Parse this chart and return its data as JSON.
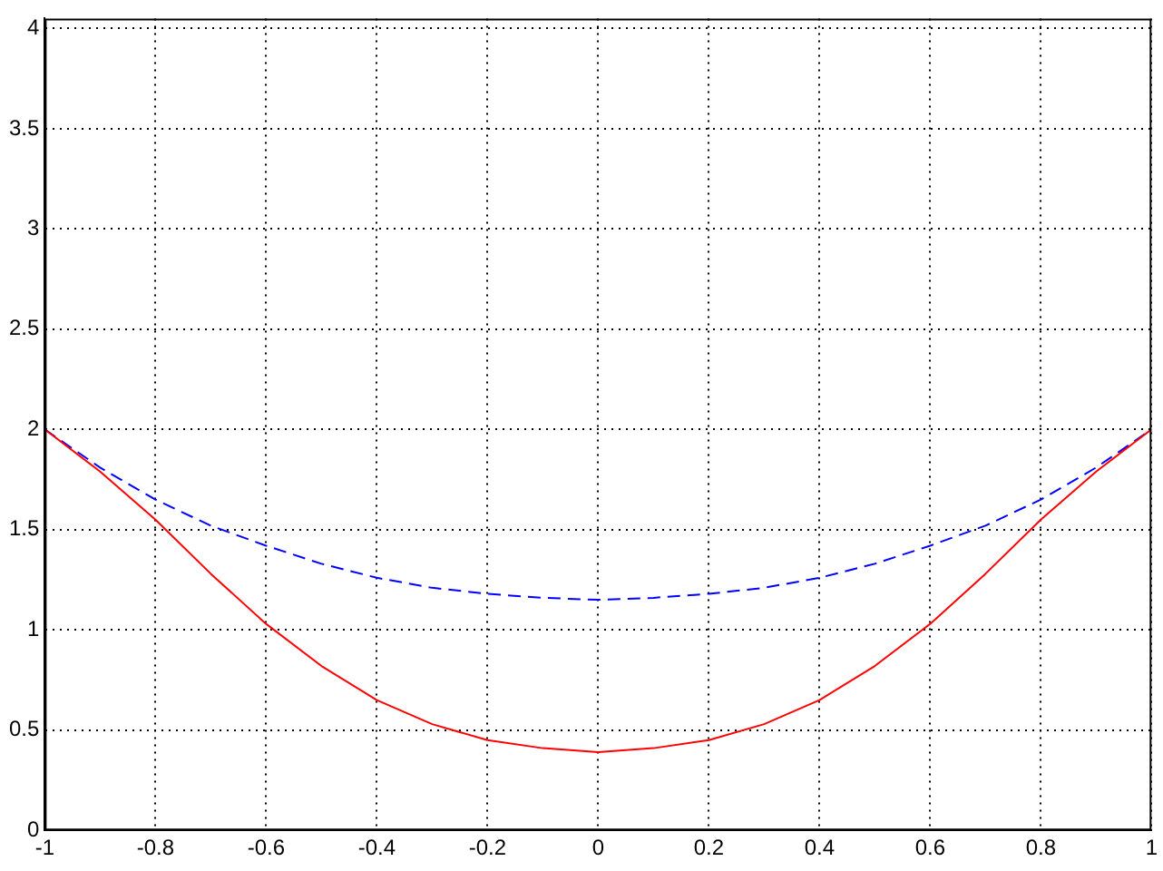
{
  "chart_data": {
    "type": "line",
    "x": [
      -1,
      -0.9,
      -0.8,
      -0.7,
      -0.6,
      -0.5,
      -0.4,
      -0.3,
      -0.2,
      -0.1,
      0,
      0.1,
      0.2,
      0.3,
      0.4,
      0.5,
      0.6,
      0.7,
      0.8,
      0.9,
      1
    ],
    "series": [
      {
        "color": "#ff0000",
        "line_style": "solid",
        "values": [
          2,
          1.79,
          1.55,
          1.28,
          1.03,
          0.82,
          0.65,
          0.53,
          0.45,
          0.41,
          0.39,
          0.41,
          0.45,
          0.53,
          0.65,
          0.82,
          1.03,
          1.28,
          1.55,
          1.79,
          2
        ]
      },
      {
        "color": "#0000ff",
        "line_style": "dashed",
        "values": [
          2,
          1.81,
          1.65,
          1.52,
          1.42,
          1.33,
          1.26,
          1.21,
          1.18,
          1.16,
          1.15,
          1.16,
          1.18,
          1.21,
          1.26,
          1.33,
          1.42,
          1.52,
          1.65,
          1.81,
          2
        ]
      }
    ],
    "xlim": [
      -1,
      1
    ],
    "xticks": [
      -1,
      -0.8,
      -0.6,
      -0.4,
      -0.2,
      0,
      0.2,
      0.4,
      0.6,
      0.8,
      1
    ],
    "ylim": [
      0,
      4.05
    ],
    "yticks": [
      0,
      0.5,
      1,
      1.5,
      2,
      2.5,
      3,
      3.5,
      4
    ],
    "grid": true,
    "legend": false,
    "marker": "none"
  }
}
